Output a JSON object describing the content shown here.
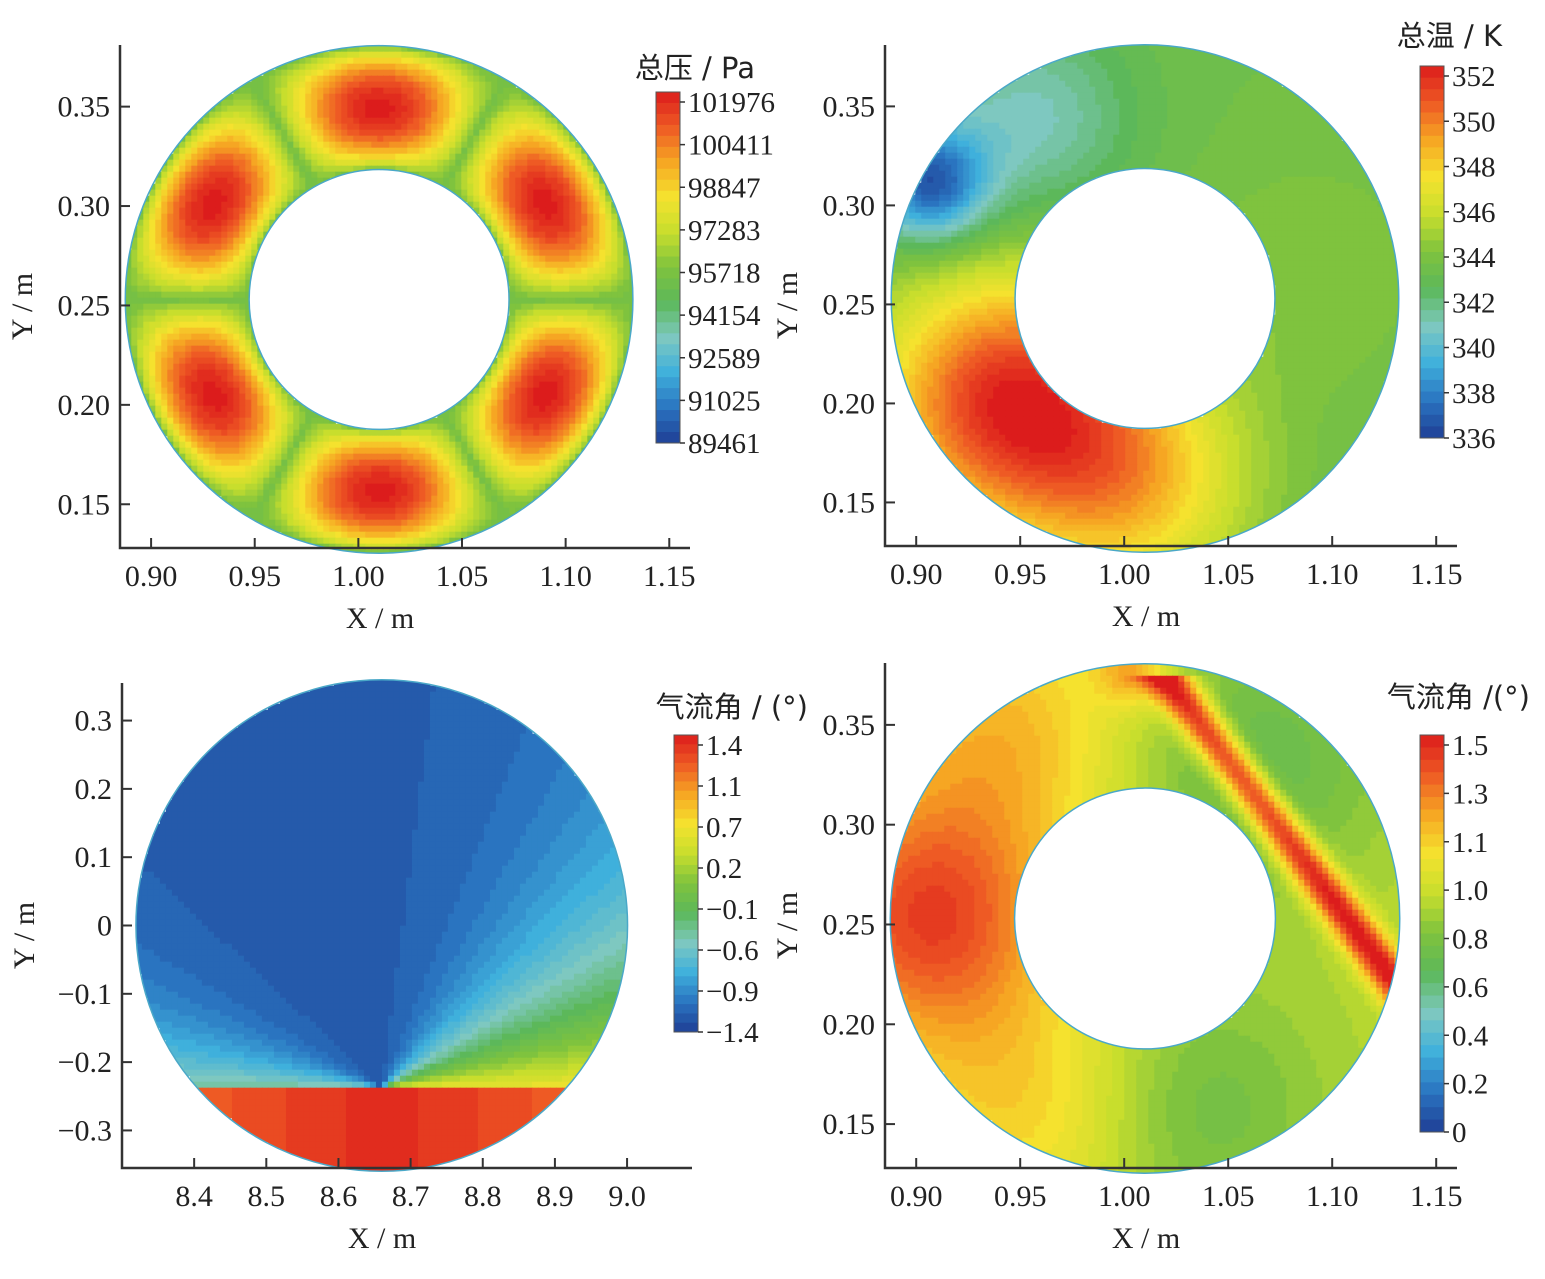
{
  "colors": {
    "ramp": [
      "#1f3f95",
      "#2a74c0",
      "#3fb0dc",
      "#7ec8c0",
      "#5cb85a",
      "#7fc33e",
      "#c8de2d",
      "#f5e22e",
      "#f6a623",
      "#ee5a24",
      "#dc1c1c"
    ],
    "axis": "#333333",
    "text": "#222222"
  },
  "chart_data": [
    {
      "type": "heatmap",
      "name_key": "total-pressure",
      "domain": "annulus",
      "title": "总压 / Pa",
      "xlabel": "X / m",
      "ylabel": "Y / m",
      "xlim": [
        0.885,
        1.16
      ],
      "ylim": [
        0.128,
        0.381
      ],
      "xticks": [
        0.9,
        0.95,
        1.0,
        1.05,
        1.1,
        1.15
      ],
      "xtick_labels": [
        "0.90",
        "0.95",
        "1.00",
        "1.05",
        "1.10",
        "1.15"
      ],
      "yticks": [
        0.15,
        0.2,
        0.25,
        0.3,
        0.35
      ],
      "ytick_labels": [
        "0.15",
        "0.20",
        "0.25",
        "0.30",
        "0.35"
      ],
      "center": [
        1.01,
        0.253
      ],
      "r_outer": 0.125,
      "r_inner": 0.064,
      "colorbar": [
        "101976",
        "100411",
        "98847",
        "97283",
        "95718",
        "94154",
        "92589",
        "91025",
        "89461"
      ],
      "colorbar_range": [
        89461,
        101976
      ],
      "pattern": "six-lobe",
      "field_summary": "six high-pressure lobes separated by low-pressure wakes"
    },
    {
      "type": "heatmap",
      "name_key": "total-temperature",
      "domain": "annulus",
      "title": "总温 / K",
      "xlabel": "X / m",
      "ylabel": "Y / m",
      "xlim": [
        0.885,
        1.16
      ],
      "ylim": [
        0.128,
        0.381
      ],
      "xticks": [
        0.9,
        0.95,
        1.0,
        1.05,
        1.1,
        1.15
      ],
      "xtick_labels": [
        "0.90",
        "0.95",
        "1.00",
        "1.05",
        "1.10",
        "1.15"
      ],
      "yticks": [
        0.15,
        0.2,
        0.25,
        0.3,
        0.35
      ],
      "ytick_labels": [
        "0.15",
        "0.20",
        "0.25",
        "0.30",
        "0.35"
      ],
      "center": [
        1.01,
        0.253
      ],
      "r_outer": 0.125,
      "r_inner": 0.064,
      "colorbar": [
        "352",
        "350",
        "348",
        "346",
        "344",
        "342",
        "340",
        "338",
        "336"
      ],
      "colorbar_range": [
        336,
        352
      ],
      "pattern": "hot-spot",
      "field_summary": "hot region in lower-left quadrant, cold spot upper-left"
    },
    {
      "type": "heatmap",
      "name_key": "flow-angle-duct",
      "domain": "disk",
      "title": "气流角 / (°)",
      "xlabel": "X / m",
      "ylabel": "Y / m",
      "xlim": [
        8.3,
        9.09
      ],
      "ylim": [
        -0.355,
        0.355
      ],
      "xticks": [
        8.4,
        8.5,
        8.6,
        8.7,
        8.8,
        8.9,
        9.0
      ],
      "xtick_labels": [
        "8.4",
        "8.5",
        "8.6",
        "8.7",
        "8.8",
        "8.9",
        "9.0"
      ],
      "yticks": [
        -0.3,
        -0.2,
        -0.1,
        0,
        0.1,
        0.2,
        0.3
      ],
      "ytick_labels": [
        "−0.3",
        "−0.2",
        "−0.1",
        "0",
        "0.1",
        "0.2",
        "0.3"
      ],
      "center": [
        8.66,
        0.0
      ],
      "r_outer": 0.35,
      "colorbar": [
        "1.4",
        "1.1",
        "0.7",
        "0.2",
        "−0.1",
        "−0.6",
        "−0.9",
        "−1.4"
      ],
      "colorbar_range": [
        -1.6,
        1.6
      ],
      "pattern": "swirl",
      "field_summary": "negative angle upper-left, positive angle near bottom, vortex point at (8.66, -0.23)"
    },
    {
      "type": "heatmap",
      "name_key": "flow-angle-annulus",
      "domain": "annulus",
      "title": "气流角 /(°)",
      "xlabel": "X / m",
      "ylabel": "Y / m",
      "xlim": [
        0.885,
        1.16
      ],
      "ylim": [
        0.128,
        0.381
      ],
      "xticks": [
        0.9,
        0.95,
        1.0,
        1.05,
        1.1,
        1.15
      ],
      "xtick_labels": [
        "0.90",
        "0.95",
        "1.00",
        "1.05",
        "1.10",
        "1.15"
      ],
      "yticks": [
        0.15,
        0.2,
        0.25,
        0.3,
        0.35
      ],
      "ytick_labels": [
        "0.15",
        "0.20",
        "0.25",
        "0.30",
        "0.35"
      ],
      "center": [
        1.01,
        0.253
      ],
      "r_outer": 0.125,
      "r_inner": 0.064,
      "colorbar": [
        "1.5",
        "1.3",
        "1.1",
        "1.0",
        "0.8",
        "0.6",
        "0.4",
        "0.2",
        "0"
      ],
      "colorbar_range": [
        0,
        1.6
      ],
      "pattern": "band",
      "field_summary": "high angle on left side and a diagonal red band on the right"
    }
  ]
}
